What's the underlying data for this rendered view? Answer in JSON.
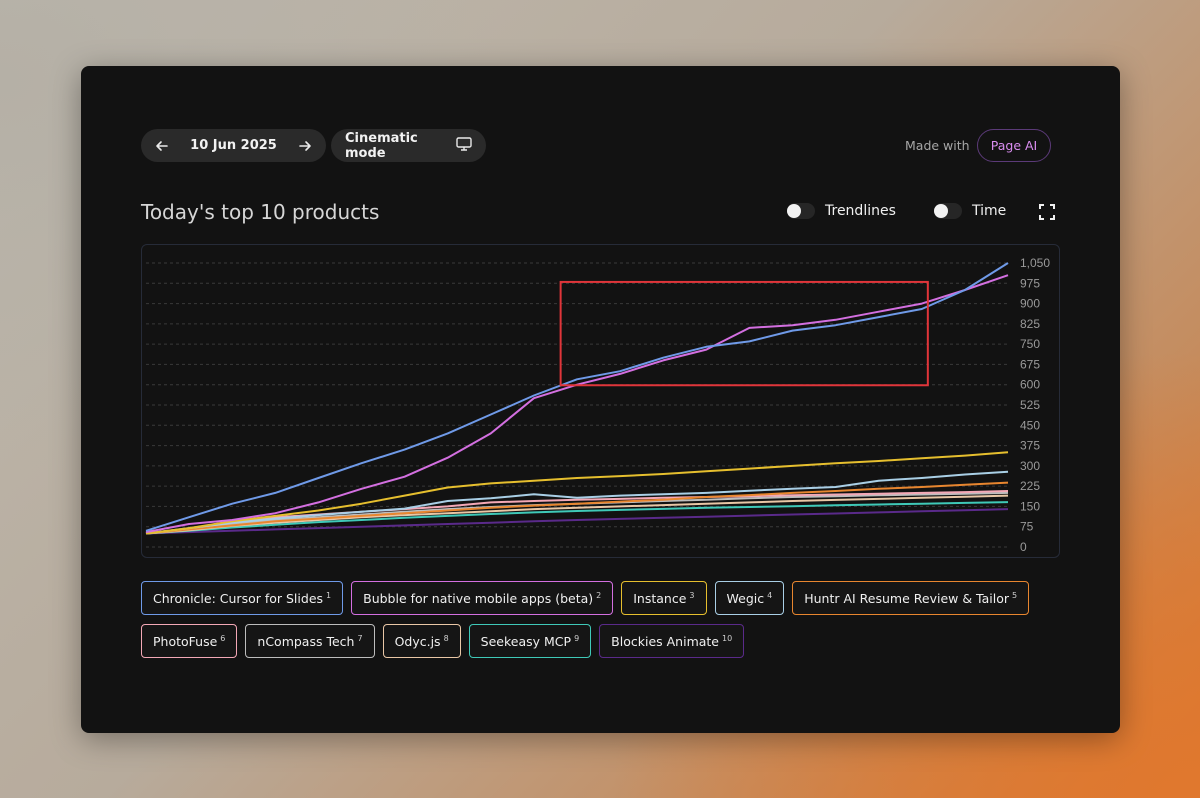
{
  "toolbar": {
    "date": "10 Jun 2025",
    "cinematic_label": "Cinematic mode",
    "made_with": "Made with",
    "page_ai": "Page AI"
  },
  "header": {
    "title": "Today's top 10 products",
    "toggles": {
      "trendlines": "Trendlines",
      "time": "Time"
    }
  },
  "colors": {
    "accent": "#d98df0",
    "highlight_box": "#e0353a",
    "grid": "#3a3a3a"
  },
  "icons": [
    "arrow-left-icon",
    "arrow-right-icon",
    "monitor-icon",
    "fullscreen-icon"
  ],
  "products": [
    {
      "name": "Chronicle: Cursor for Slides",
      "rank": "1",
      "color": "#6f9ae8"
    },
    {
      "name": "Bubble for native mobile apps (beta)",
      "rank": "2",
      "color": "#d36fe0"
    },
    {
      "name": "Instance",
      "rank": "3",
      "color": "#e6bf2e"
    },
    {
      "name": "Wegic",
      "rank": "4",
      "color": "#a9cfe6"
    },
    {
      "name": "Huntr AI Resume Review & Tailor",
      "rank": "5",
      "color": "#e8862f"
    },
    {
      "name": "PhotoFuse",
      "rank": "6",
      "color": "#f3a8b6"
    },
    {
      "name": "nCompass Tech",
      "rank": "7",
      "color": "#bdbdbd"
    },
    {
      "name": "Odyc.js",
      "rank": "8",
      "color": "#e9c7a6"
    },
    {
      "name": "Seekeasy MCP",
      "rank": "9",
      "color": "#3fc9b8"
    },
    {
      "name": "Blockies Animate",
      "rank": "10",
      "color": "#5a2a8a"
    }
  ],
  "chart_data": {
    "type": "line",
    "title": "Today's top 10 products",
    "xlabel": "",
    "ylabel": "",
    "ylim": [
      0,
      1050
    ],
    "yticks": [
      "0",
      "75",
      "150",
      "225",
      "300",
      "375",
      "450",
      "525",
      "600",
      "675",
      "750",
      "825",
      "900",
      "975",
      "1,050"
    ],
    "grid": true,
    "legend": "bottom",
    "x": [
      0,
      0.05,
      0.1,
      0.15,
      0.2,
      0.25,
      0.3,
      0.35,
      0.4,
      0.45,
      0.5,
      0.55,
      0.6,
      0.65,
      0.7,
      0.75,
      0.8,
      0.85,
      0.9,
      0.95,
      1.0
    ],
    "series": [
      {
        "name": "Chronicle: Cursor for Slides",
        "color": "#6f9ae8",
        "values": [
          60,
          110,
          160,
          200,
          255,
          310,
          360,
          420,
          490,
          560,
          620,
          650,
          700,
          740,
          760,
          800,
          820,
          850,
          880,
          950,
          1050
        ]
      },
      {
        "name": "Bubble for native mobile apps (beta)",
        "color": "#d36fe0",
        "values": [
          55,
          85,
          100,
          125,
          165,
          215,
          260,
          330,
          420,
          550,
          600,
          640,
          690,
          730,
          810,
          820,
          840,
          870,
          900,
          950,
          1005
        ]
      },
      {
        "name": "Instance",
        "color": "#e6bf2e",
        "values": [
          50,
          70,
          95,
          115,
          135,
          160,
          190,
          220,
          235,
          245,
          255,
          262,
          270,
          280,
          290,
          300,
          310,
          318,
          328,
          338,
          350
        ]
      },
      {
        "name": "Wegic",
        "color": "#a9cfe6",
        "values": [
          50,
          70,
          90,
          105,
          118,
          130,
          142,
          170,
          180,
          195,
          182,
          190,
          195,
          200,
          208,
          215,
          222,
          245,
          255,
          268,
          278
        ]
      },
      {
        "name": "Huntr AI Resume Review & Tailor",
        "color": "#e8862f",
        "values": [
          50,
          65,
          80,
          95,
          105,
          115,
          125,
          135,
          145,
          153,
          160,
          168,
          175,
          185,
          192,
          200,
          207,
          215,
          222,
          230,
          238
        ]
      },
      {
        "name": "PhotoFuse",
        "color": "#f3a8b6",
        "values": [
          50,
          68,
          95,
          110,
          120,
          130,
          140,
          150,
          165,
          170,
          175,
          178,
          182,
          185,
          188,
          191,
          194,
          197,
          200,
          203,
          207
        ]
      },
      {
        "name": "nCompass Tech",
        "color": "#bdbdbd",
        "values": [
          50,
          65,
          85,
          100,
          110,
          120,
          130,
          140,
          148,
          155,
          160,
          165,
          170,
          175,
          180,
          185,
          188,
          191,
          194,
          197,
          200
        ]
      },
      {
        "name": "Odyc.js",
        "color": "#e9c7a6",
        "values": [
          50,
          62,
          78,
          90,
          100,
          110,
          118,
          125,
          132,
          140,
          145,
          150,
          155,
          160,
          165,
          170,
          174,
          178,
          182,
          186,
          190
        ]
      },
      {
        "name": "Seekeasy MCP",
        "color": "#3fc9b8",
        "values": [
          50,
          60,
          72,
          82,
          92,
          100,
          108,
          115,
          122,
          128,
          133,
          137,
          141,
          145,
          148,
          151,
          154,
          157,
          160,
          163,
          166
        ]
      },
      {
        "name": "Blockies Animate",
        "color": "#5a2a8a",
        "values": [
          50,
          55,
          60,
          65,
          70,
          75,
          80,
          85,
          90,
          95,
          100,
          104,
          108,
          112,
          116,
          120,
          124,
          128,
          132,
          136,
          140
        ]
      }
    ]
  }
}
